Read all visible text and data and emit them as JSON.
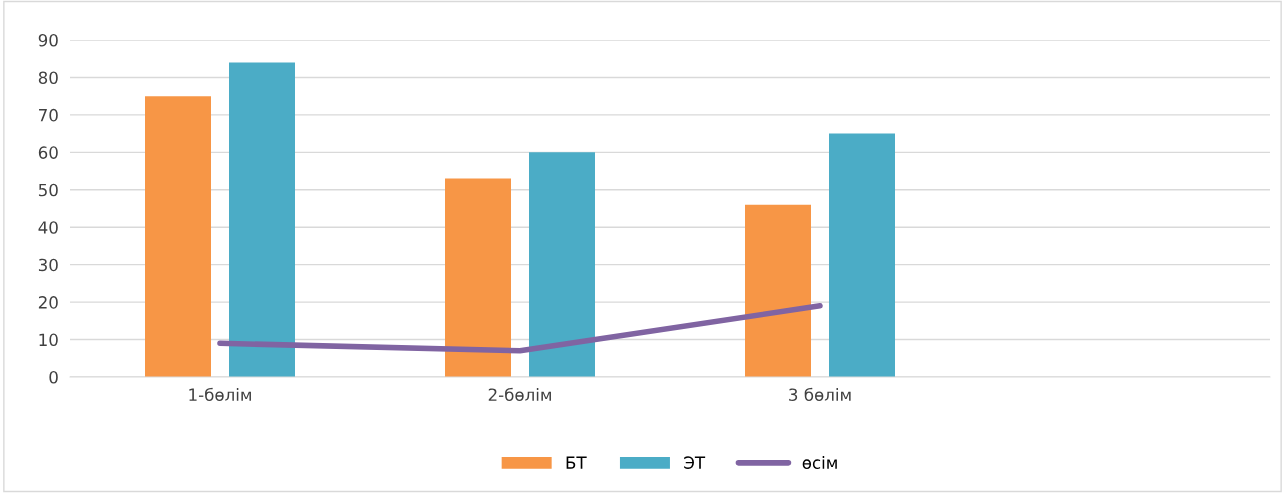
{
  "chart_data": {
    "type": "bar",
    "categories": [
      "1-бөлім",
      "2-бөлім",
      "3 бөлім",
      null
    ],
    "series": [
      {
        "name": "БТ",
        "color": "#f79646",
        "values": [
          75,
          53,
          46,
          null
        ]
      },
      {
        "name": "ЭТ",
        "color": "#4bacc6",
        "values": [
          84,
          60,
          65,
          null
        ]
      },
      {
        "name": "өсім",
        "type": "line",
        "color": "#8064a2",
        "values": [
          9,
          7,
          19,
          null
        ]
      }
    ],
    "ylim": [
      0,
      90
    ],
    "yticks": [
      0,
      10,
      20,
      30,
      40,
      50,
      60,
      70,
      80,
      90
    ],
    "grid": "y",
    "legend": "bottom",
    "marker": "none",
    "line_style": "solid"
  }
}
